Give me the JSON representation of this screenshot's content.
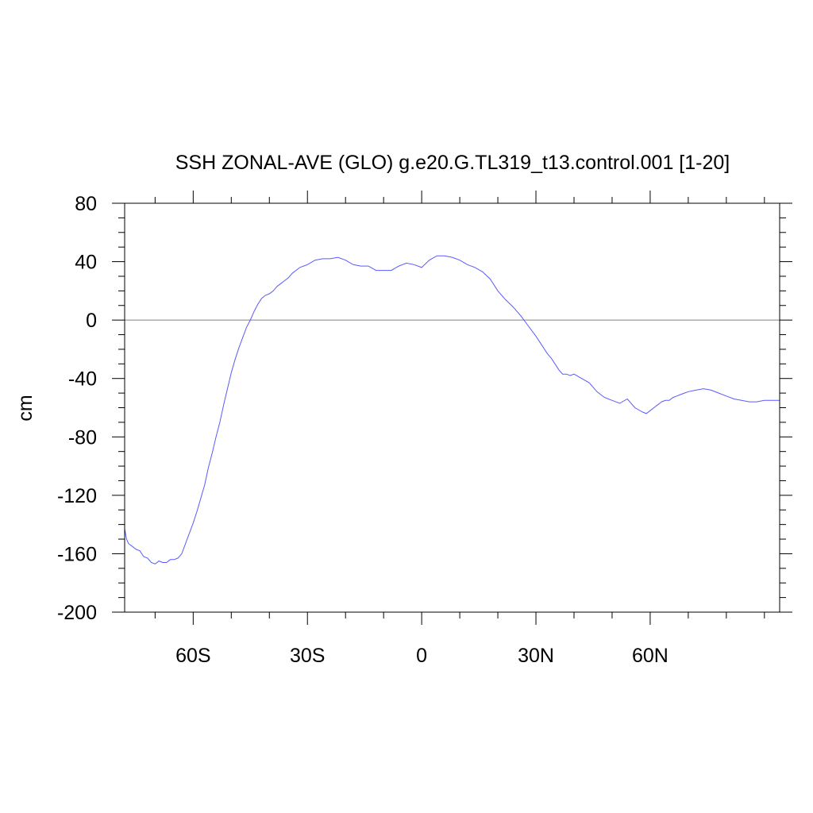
{
  "chart_data": {
    "type": "line",
    "title": "SSH ZONAL-AVE (GLO) g.e20.G.TL319_t13.control.001 [1-20]",
    "xlabel": "",
    "ylabel": "cm",
    "xlim": [
      -78,
      94
    ],
    "ylim": [
      -200,
      80
    ],
    "x_ticks": [
      {
        "value": -60,
        "label": "60S"
      },
      {
        "value": -30,
        "label": "30S"
      },
      {
        "value": 0,
        "label": "0"
      },
      {
        "value": 30,
        "label": "30N"
      },
      {
        "value": 60,
        "label": "60N"
      }
    ],
    "x_minor_step": 10,
    "y_ticks": [
      {
        "value": 80,
        "label": "80"
      },
      {
        "value": 40,
        "label": "40"
      },
      {
        "value": 0,
        "label": "0"
      },
      {
        "value": -40,
        "label": "-40"
      },
      {
        "value": -80,
        "label": "-80"
      },
      {
        "value": -120,
        "label": "-120"
      },
      {
        "value": -160,
        "label": "-160"
      },
      {
        "value": -200,
        "label": "-200"
      }
    ],
    "y_minor_step": 10,
    "reference_line": 0,
    "grid": false,
    "colors": {
      "series": "#5a5aff",
      "reference": "#808080",
      "axes": "#000000"
    },
    "series": [
      {
        "x": [
          -78,
          -77.5,
          -77,
          -76,
          -75,
          -74,
          -73,
          -72,
          -71,
          -70,
          -69,
          -68,
          -67,
          -66,
          -65,
          -64,
          -63,
          -62,
          -61,
          -60,
          -59,
          -58,
          -57,
          -56,
          -55,
          -54,
          -53,
          -52,
          -51,
          -50,
          -49,
          -48,
          -47,
          -46,
          -45,
          -44,
          -43,
          -42,
          -41,
          -40,
          -39,
          -38,
          -37,
          -36,
          -35,
          -34,
          -33,
          -32,
          -31,
          -30,
          -28,
          -26,
          -24,
          -22,
          -20,
          -18,
          -16,
          -14,
          -12,
          -10,
          -8,
          -6,
          -4,
          -2,
          0,
          2,
          4,
          6,
          8,
          10,
          12,
          14,
          16,
          18,
          20,
          22,
          24,
          26,
          28,
          30,
          31,
          32,
          33,
          34,
          35,
          36,
          37,
          38,
          39,
          40,
          42,
          44,
          46,
          48,
          50,
          52,
          54,
          56,
          58,
          59,
          60,
          61,
          62,
          62.5,
          63,
          64,
          65,
          66,
          67,
          68,
          69,
          70,
          72,
          74,
          76,
          78,
          80,
          82,
          84,
          86,
          88,
          90,
          92,
          94
        ],
        "y": [
          -143,
          -150,
          -153,
          -155,
          -157,
          -158,
          -162,
          -163,
          -166,
          -167,
          -165,
          -166,
          -166,
          -164,
          -164,
          -163,
          -160,
          -153,
          -146,
          -139,
          -131,
          -122,
          -113,
          -101,
          -91,
          -80,
          -70,
          -58,
          -47,
          -36,
          -27,
          -19,
          -12,
          -5,
          0,
          6,
          11,
          15,
          17,
          18,
          20,
          23,
          25,
          27,
          29,
          32,
          34,
          36,
          37,
          38,
          41,
          42,
          42,
          43,
          41,
          38,
          37,
          37,
          34,
          34,
          34,
          37,
          39,
          38,
          36,
          41,
          44,
          44,
          43,
          41,
          38,
          36,
          33,
          28,
          20,
          14,
          9,
          3,
          -4,
          -11,
          -15,
          -19,
          -23,
          -26,
          -30,
          -34,
          -37,
          -37,
          -38,
          -37,
          -40,
          -43,
          -49,
          -53,
          -55,
          -57,
          -54,
          -60,
          -63,
          -64,
          -62,
          -60,
          -58,
          -57,
          -56,
          -55,
          -55,
          -53,
          -52,
          -51,
          -50,
          -49,
          -48,
          -47,
          -48,
          -50,
          -52,
          -54,
          -55,
          -56,
          -56,
          -55,
          -55,
          -55
        ]
      }
    ]
  }
}
